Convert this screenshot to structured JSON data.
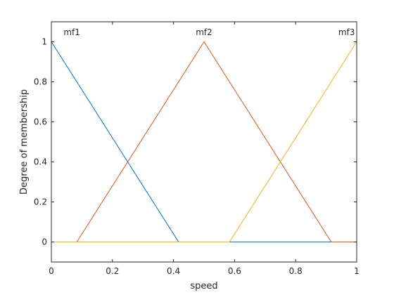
{
  "chart_data": {
    "type": "line",
    "title": "",
    "xlabel": "speed",
    "ylabel": "Degree of membership",
    "xlim": [
      0,
      1
    ],
    "ylim": [
      -0.1,
      1.1
    ],
    "grid": false,
    "legend": "none",
    "x_ticks": [
      {
        "value": 0,
        "label": "0"
      },
      {
        "value": 0.2,
        "label": "0.2"
      },
      {
        "value": 0.4,
        "label": "0.4"
      },
      {
        "value": 0.6,
        "label": "0.6"
      },
      {
        "value": 0.8,
        "label": "0.8"
      },
      {
        "value": 1,
        "label": "1"
      }
    ],
    "y_ticks": [
      {
        "value": 0,
        "label": "0"
      },
      {
        "value": 0.2,
        "label": "0.2"
      },
      {
        "value": 0.4,
        "label": "0.4"
      },
      {
        "value": 0.6,
        "label": "0.6"
      },
      {
        "value": 0.8,
        "label": "0.8"
      },
      {
        "value": 1,
        "label": "1"
      }
    ],
    "series": [
      {
        "name": "mf1",
        "color": "#0072bd",
        "points": [
          [
            0,
            1
          ],
          [
            0.4167,
            0
          ],
          [
            1,
            0
          ]
        ]
      },
      {
        "name": "mf2",
        "color": "#d95319",
        "points": [
          [
            0,
            0
          ],
          [
            0.0833,
            0
          ],
          [
            0.5,
            1
          ],
          [
            0.9167,
            0
          ],
          [
            1,
            0
          ]
        ]
      },
      {
        "name": "mf3",
        "color": "#edb120",
        "points": [
          [
            0,
            0
          ],
          [
            0.5833,
            0
          ],
          [
            1,
            1
          ]
        ]
      }
    ],
    "annotations": [
      {
        "text": "mf1",
        "x": 0.04,
        "anchor": "start"
      },
      {
        "text": "mf2",
        "x": 0.5,
        "anchor": "middle"
      },
      {
        "text": "mf3",
        "x": 0.994,
        "anchor": "end"
      }
    ]
  }
}
